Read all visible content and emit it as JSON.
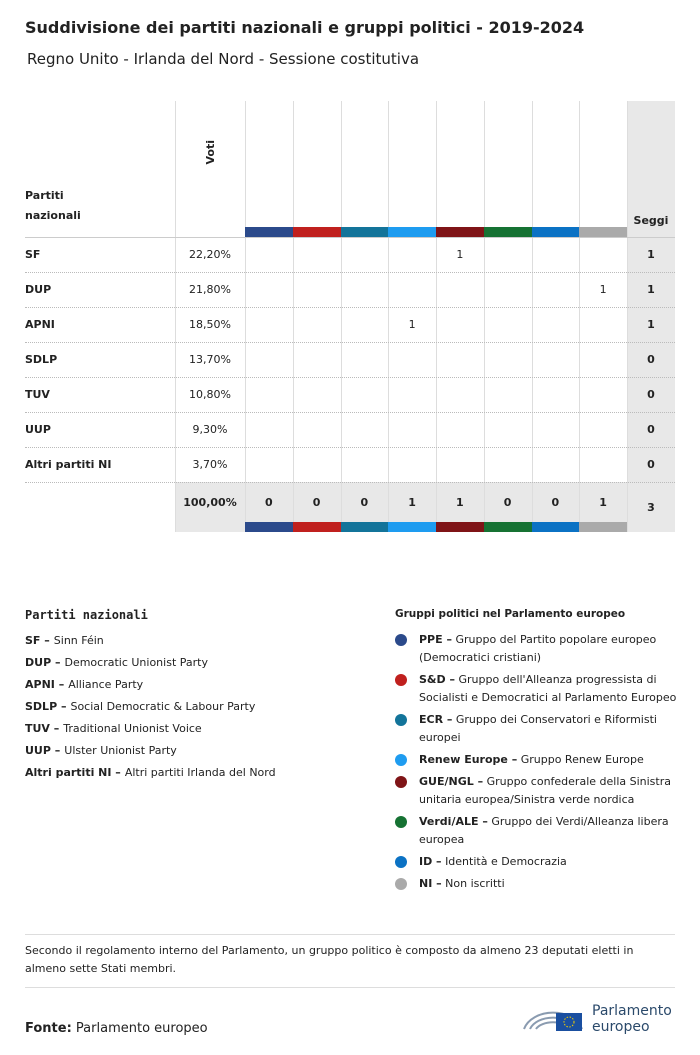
{
  "header": {
    "title": "Suddivisione dei partiti nazionali e gruppi politici - 2019-2024",
    "subtitle": "Regno Unito - Irlanda del Nord - Sessione costitutiva"
  },
  "table": {
    "party_header": "Partiti nazionali",
    "votes_header": "Voti",
    "seats_header": "Seggi",
    "groups": [
      {
        "name": "PPE",
        "color": "#2b4a8b"
      },
      {
        "name": "S&D",
        "color": "#c0201e"
      },
      {
        "name": "ECR",
        "color": "#13749a"
      },
      {
        "name": "Renew Europe",
        "color": "#1e9cf0"
      },
      {
        "name": "GUE/NGL",
        "color": "#7f1417"
      },
      {
        "name": "Verdi/ALE",
        "color": "#167233"
      },
      {
        "name": "ID",
        "color": "#0b72c4"
      },
      {
        "name": "NI",
        "color": "#aaaaaa"
      }
    ],
    "rows": [
      {
        "party": "SF",
        "votes": "22,20%",
        "cells": [
          null,
          null,
          null,
          null,
          1,
          null,
          null,
          null
        ],
        "seats": 1
      },
      {
        "party": "DUP",
        "votes": "21,80%",
        "cells": [
          null,
          null,
          null,
          null,
          null,
          null,
          null,
          1
        ],
        "seats": 1
      },
      {
        "party": "APNI",
        "votes": "18,50%",
        "cells": [
          null,
          null,
          null,
          1,
          null,
          null,
          null,
          null
        ],
        "seats": 1
      },
      {
        "party": "SDLP",
        "votes": "13,70%",
        "cells": [
          null,
          null,
          null,
          null,
          null,
          null,
          null,
          null
        ],
        "seats": 0
      },
      {
        "party": "TUV",
        "votes": "10,80%",
        "cells": [
          null,
          null,
          null,
          null,
          null,
          null,
          null,
          null
        ],
        "seats": 0
      },
      {
        "party": "UUP",
        "votes": "9,30%",
        "cells": [
          null,
          null,
          null,
          null,
          null,
          null,
          null,
          null
        ],
        "seats": 0
      },
      {
        "party": "Altri partiti NI",
        "votes": "3,70%",
        "cells": [
          null,
          null,
          null,
          null,
          null,
          null,
          null,
          null
        ],
        "seats": 0
      }
    ],
    "totals": {
      "votes": "100,00%",
      "cells": [
        0,
        0,
        0,
        1,
        1,
        0,
        0,
        1
      ],
      "seats": 3
    }
  },
  "parties_legend": {
    "title": "Partiti nazionali",
    "items": [
      {
        "key": "SF –",
        "text": "Sinn Féin"
      },
      {
        "key": "DUP –",
        "text": "Democratic Unionist Party"
      },
      {
        "key": "APNI –",
        "text": "Alliance Party"
      },
      {
        "key": "SDLP –",
        "text": "Social Democratic & Labour Party"
      },
      {
        "key": "TUV –",
        "text": "Traditional Unionist Voice"
      },
      {
        "key": "UUP –",
        "text": "Ulster Unionist Party"
      },
      {
        "key": "Altri partiti NI –",
        "text": "Altri partiti Irlanda del Nord"
      }
    ]
  },
  "groups_legend": {
    "title": "Gruppi politici nel Parlamento europeo",
    "items": [
      {
        "key": "PPE –",
        "text": "Gruppo del Partito popolare europeo (Democratici cristiani)",
        "color": "#2b4a8b"
      },
      {
        "key": "S&D –",
        "text": "Gruppo dell'Alleanza progressista di Socialisti e Democratici al Parlamento Europeo",
        "color": "#c0201e"
      },
      {
        "key": "ECR –",
        "text": "Gruppo dei Conservatori e Riformisti europei",
        "color": "#13749a"
      },
      {
        "key": "Renew Europe –",
        "text": "Gruppo Renew Europe",
        "color": "#1e9cf0"
      },
      {
        "key": "GUE/NGL –",
        "text": "Gruppo confederale della Sinistra unitaria europea/Sinistra verde nordica",
        "color": "#7f1417"
      },
      {
        "key": "Verdi/ALE –",
        "text": "Gruppo dei Verdi/Alleanza libera europea",
        "color": "#167233"
      },
      {
        "key": "ID –",
        "text": "Identità e Democrazia",
        "color": "#0b72c4"
      },
      {
        "key": "NI –",
        "text": "Non iscritti",
        "color": "#aaaaaa"
      }
    ]
  },
  "note": "Secondo il regolamento interno del Parlamento, un gruppo politico è composto da almeno 23 deputati eletti in almeno sette Stati membri.",
  "footer": {
    "source_label": "Fonte:",
    "source": "Parlamento europeo",
    "logo_line1": "Parlamento",
    "logo_line2": "europeo"
  }
}
